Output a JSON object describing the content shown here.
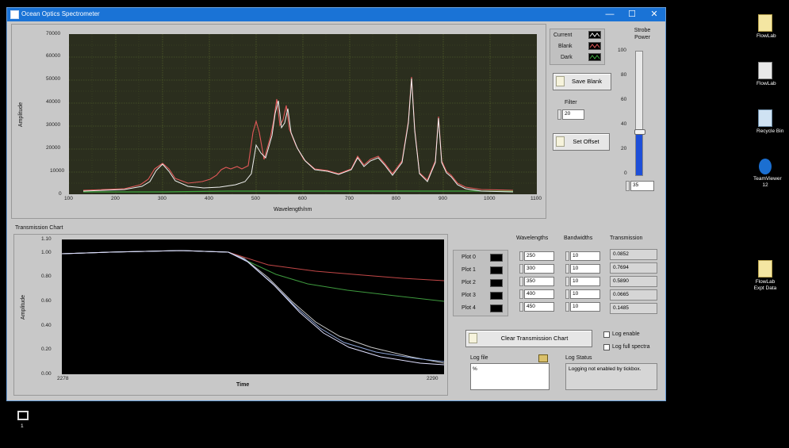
{
  "window": {
    "title": "Ocean Optics Spectrometer",
    "minimize": "—",
    "maximize": "☐",
    "close": "✕"
  },
  "spectrum": {
    "legend": [
      "Current",
      "Blank",
      "Dark"
    ],
    "y_axis_label": "Amplitude",
    "x_axis_label": "Wavelength/nm",
    "y_ticks": [
      "70000",
      "60000",
      "50000",
      "40000",
      "30000",
      "20000",
      "10000",
      "0"
    ],
    "x_ticks": [
      "100",
      "200",
      "300",
      "400",
      "500",
      "600",
      "700",
      "800",
      "900",
      "1000",
      "1100"
    ]
  },
  "controls": {
    "save_blank": "Save Blank",
    "filter_label": "Filter",
    "filter_value": "20",
    "set_offset": "Set Offset",
    "strobe_label": "Strobe Power",
    "strobe_ticks": [
      "100",
      "80",
      "60",
      "40",
      "20",
      "0"
    ],
    "strobe_value": "35",
    "strobe_level": 0.35
  },
  "transmission": {
    "title": "Transmission Chart",
    "y_axis_label": "Amplitude",
    "x_axis_label": "Time",
    "y_ticks": [
      "1.10",
      "1.00",
      "0.80",
      "0.60",
      "0.40",
      "0.20",
      "0.00"
    ],
    "x_start": "2278",
    "x_end": "2290"
  },
  "table": {
    "headers": {
      "wavelengths": "Wavelengths",
      "bandwidths": "Bandwidths",
      "transmission": "Transmission"
    },
    "plots": [
      "Plot 0",
      "Plot 1",
      "Plot 2",
      "Plot 3",
      "Plot 4"
    ],
    "wavelengths": [
      "250",
      "300",
      "350",
      "400",
      "450"
    ],
    "bandwidths": [
      "10",
      "10",
      "10",
      "10",
      "10"
    ],
    "transmission": [
      "0.0852",
      "0.7694",
      "0.5890",
      "0.0665",
      "0.1485"
    ]
  },
  "log": {
    "clear_button": "Clear Transmission Chart",
    "log_enable": "Log enable",
    "log_full_spectra": "Log full spectra",
    "log_file_label": "Log file",
    "log_file_value": "%",
    "log_status_label": "Log Status",
    "log_status_text": "Logging not enabled by tickbox."
  },
  "desktop": {
    "icons": [
      "FlowLab",
      "FlowLab",
      "Recycle Bin",
      "TeamViewer 12",
      "FlowLab Expt Data"
    ],
    "taskbar_label": "1"
  },
  "colors": {
    "titlebar": "#1a73d6",
    "current": "#f0f0f0",
    "blank": "#e05858",
    "dark": "#3fa83f",
    "slider_fill": "#1e4fd8"
  }
}
